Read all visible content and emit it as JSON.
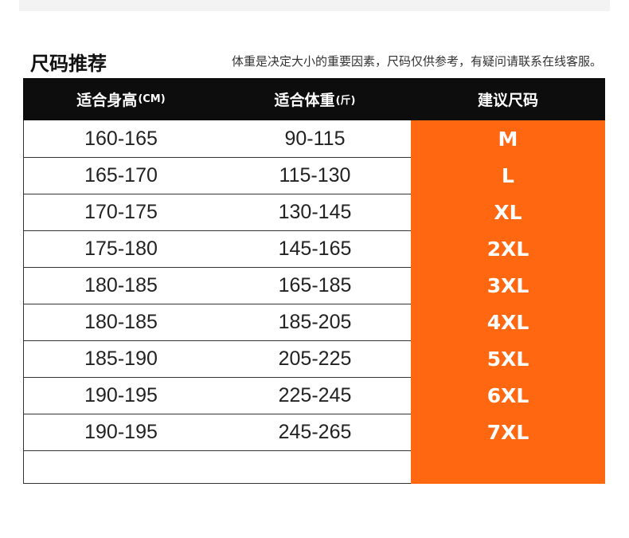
{
  "title": "尺码推荐",
  "note": "体重是决定大小的重要因素，尺码仅供参考，有疑问请联系在线客服。",
  "headers": {
    "height": "适合身高",
    "height_unit": "(CM)",
    "weight": "适合体重",
    "weight_unit": "(斤)",
    "size": "建议尺码"
  },
  "rows": [
    {
      "height": "160-165",
      "weight": "90-115",
      "size": "M"
    },
    {
      "height": "165-170",
      "weight": "115-130",
      "size": "L"
    },
    {
      "height": "170-175",
      "weight": "130-145",
      "size": "XL"
    },
    {
      "height": "175-180",
      "weight": "145-165",
      "size": "2XL"
    },
    {
      "height": "180-185",
      "weight": "165-185",
      "size": "3XL"
    },
    {
      "height": "180-185",
      "weight": "185-205",
      "size": "4XL"
    },
    {
      "height": "185-190",
      "weight": "205-225",
      "size": "5XL"
    },
    {
      "height": "190-195",
      "weight": "225-245",
      "size": "6XL"
    },
    {
      "height": "190-195",
      "weight": "245-265",
      "size": "7XL"
    }
  ],
  "colors": {
    "header_bg": "#0d0d0d",
    "size_column": "#ff6711"
  }
}
